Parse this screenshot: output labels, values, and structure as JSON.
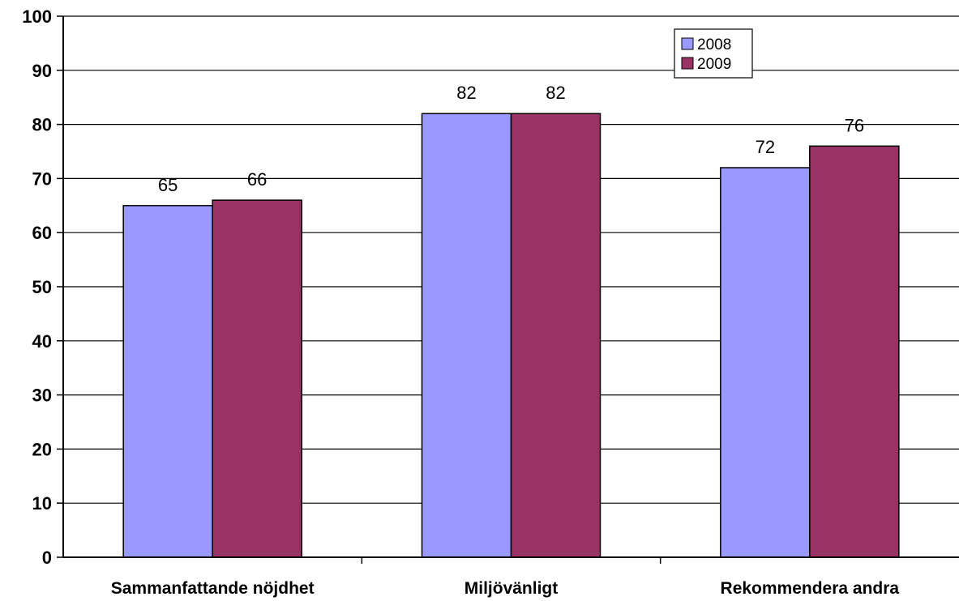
{
  "chart_data": {
    "type": "bar",
    "categories": [
      "Sammanfattande nöjdhet",
      "Miljövänligt",
      "Rekommendera andra"
    ],
    "series": [
      {
        "name": "2008",
        "values": [
          65,
          82,
          72
        ],
        "color": "#9999ff"
      },
      {
        "name": "2009",
        "values": [
          66,
          82,
          76
        ],
        "color": "#993366"
      }
    ],
    "ylim": [
      0,
      100
    ],
    "yticks": [
      "0",
      "10",
      "20",
      "30",
      "40",
      "50",
      "60",
      "70",
      "80",
      "90",
      "100"
    ],
    "grid": true,
    "legend_position": "top-center",
    "data_labels": true
  }
}
